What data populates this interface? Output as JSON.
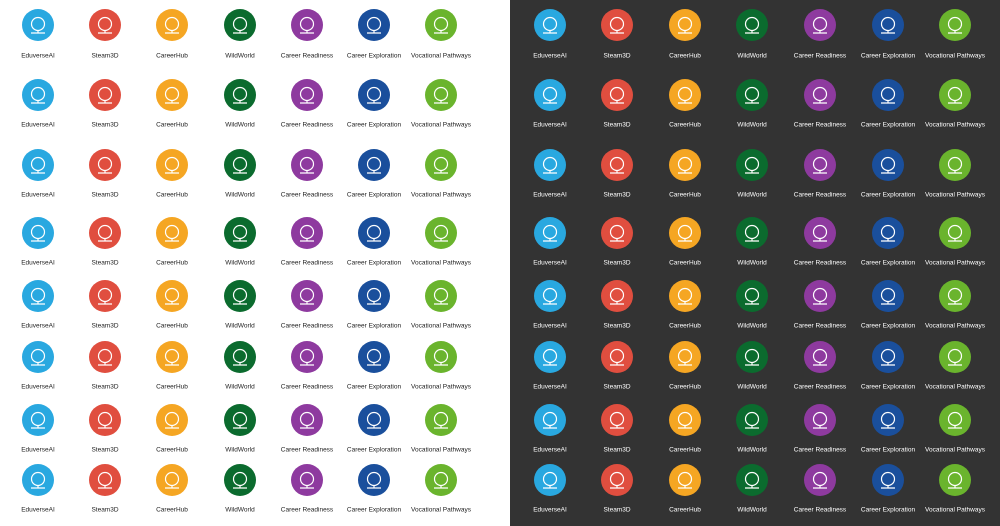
{
  "panels": [
    {
      "rows": [
        [
          "EduverseAI",
          "Steam3D",
          "CareerHub",
          "WildWorld",
          "Career Readiness",
          "Career Exploration",
          "Vocational Pathways"
        ],
        [
          "EduverseAI",
          "Steam3D",
          "CareerHub",
          "WildWorld",
          "Career Readiness",
          "Career Exploration",
          "Vocational Pathways"
        ],
        [
          "EduverseAI",
          "Steam3D",
          "CareerHub",
          "WildWorld",
          "Career Readiness",
          "Career Exploration",
          "Vocational Pathways"
        ],
        [
          "EduverseAI",
          "Steam3D",
          "CareerHub",
          "WildWorld",
          "Career Readiness",
          "Career Exploration",
          "Vocational Pathways"
        ],
        [
          "EduverseAI",
          "Steam3D",
          "CareerHub",
          "WildWorld",
          "Career Readiness",
          "Career Exploration",
          "Vocational Pathways"
        ],
        [
          "EduverseAI",
          "Steam3D",
          "CareerHub",
          "WildWorld",
          "Career Readiness",
          "Career Exploration",
          "Vocational Pathways"
        ],
        [
          "EduverseAI",
          "Steam3D",
          "CareerHub",
          "WildWorld",
          "Career Readiness",
          "Career Exploration",
          "Vocational Pathways"
        ],
        [
          "EduverseAI",
          "Steam3D",
          "CareerHub",
          "WildWorld",
          "Career Readiness",
          "Career Exploration",
          "Vocational Pathways"
        ]
      ]
    },
    {
      "rows": [
        [
          "EduverseAI",
          "Steam3D",
          "CareerHub",
          "WildWorld",
          "Career Readiness",
          "Career Exploration",
          "Vocational Pathways"
        ],
        [
          "EduverseAI",
          "Steam3D",
          "CareerHub",
          "WildWorld",
          "Career Readiness",
          "Career Exploration",
          "Vocational Pathways"
        ],
        [
          "EduverseAI",
          "Steam3D",
          "CareerHub",
          "WildWorld",
          "Career Readiness",
          "Career Exploration",
          "Vocational Pathways"
        ],
        [
          "EduverseAI",
          "Steam3D",
          "CareerHub",
          "WildWorld",
          "Career Readiness",
          "Career Exploration",
          "Vocational Pathways"
        ],
        [
          "EduverseAI",
          "Steam3D",
          "CareerHub",
          "WildWorld",
          "Career Readiness",
          "Career Exploration",
          "Vocational Pathways"
        ],
        [
          "EduverseAI",
          "Steam3D",
          "CareerHub",
          "WildWorld",
          "Career Readiness",
          "Career Exploration",
          "Vocational Pathways"
        ],
        [
          "EduverseAI",
          "Steam3D",
          "CareerHub",
          "WildWorld",
          "Career Readiness",
          "Career Exploration",
          "Vocational Pathways"
        ],
        [
          "EduverseAI",
          "Steam3D",
          "CareerHub",
          "WildWorld",
          "Career Readiness",
          "Career Exploration",
          "Vocational Pathways"
        ]
      ]
    }
  ]
}
